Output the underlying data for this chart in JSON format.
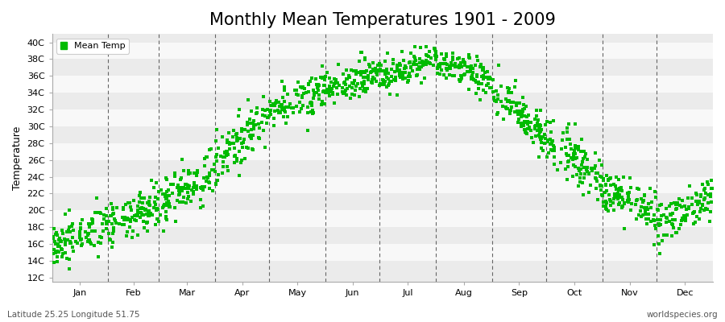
{
  "title": "Monthly Mean Temperatures 1901 - 2009",
  "ylabel": "Temperature",
  "subtitle_left": "Latitude 25.25 Longitude 51.75",
  "subtitle_right": "worldspecies.org",
  "legend_label": "Mean Temp",
  "dot_color": "#00bb00",
  "background_color": "#ffffff",
  "band_color_odd": "#ebebeb",
  "band_color_even": "#f8f8f8",
  "ytick_labels": [
    "12C",
    "14C",
    "16C",
    "18C",
    "20C",
    "22C",
    "24C",
    "26C",
    "28C",
    "30C",
    "32C",
    "34C",
    "36C",
    "38C",
    "40C"
  ],
  "ytick_values": [
    12,
    14,
    16,
    18,
    20,
    22,
    24,
    26,
    28,
    30,
    32,
    34,
    36,
    38,
    40
  ],
  "months": [
    "Jan",
    "Feb",
    "Mar",
    "Apr",
    "May",
    "Jun",
    "Jul",
    "Aug",
    "Sep",
    "Oct",
    "Nov",
    "Dec"
  ],
  "month_days": [
    31,
    28,
    31,
    30,
    31,
    30,
    31,
    31,
    30,
    31,
    30,
    31
  ],
  "monthly_mean_start": [
    15.5,
    17.5,
    21.0,
    25.5,
    32.0,
    34.5,
    36.0,
    37.5,
    34.5,
    29.0,
    22.5,
    18.0
  ],
  "monthly_mean_end": [
    18.5,
    21.0,
    24.5,
    31.5,
    34.5,
    36.5,
    38.0,
    35.5,
    28.5,
    23.5,
    19.5,
    22.0
  ],
  "monthly_std": [
    1.3,
    1.3,
    1.5,
    1.5,
    1.2,
    1.0,
    1.0,
    1.0,
    1.3,
    1.5,
    1.3,
    1.3
  ],
  "n_years": 109,
  "seed": 42,
  "ylim": [
    11.5,
    41.0
  ],
  "title_fontsize": 15,
  "label_fontsize": 9,
  "tick_fontsize": 8,
  "marker_size": 7
}
